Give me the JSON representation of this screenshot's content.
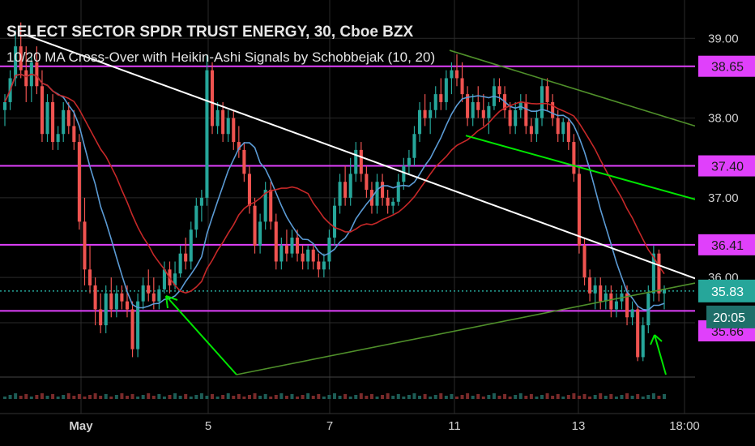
{
  "chart_data": {
    "type": "candlestick",
    "title": "SELECT SECTOR SPDR TRUST ENERGY, 30, Cboe BZX",
    "subtitle": "10/20 MA Cross-Over with Heikin-Ashi Signals by Schobbejak (10, 20)",
    "y_ticks": [
      "39.00",
      "38.00",
      "37.00",
      "36.00"
    ],
    "ylim": [
      34.75,
      39.4
    ],
    "x_ticks": [
      "May",
      "5",
      "7",
      "11",
      "13",
      "18:00"
    ],
    "horizontal_levels": [
      {
        "label": "38.65",
        "value": 38.65
      },
      {
        "label": "37.40",
        "value": 37.4
      },
      {
        "label": "36.41",
        "value": 36.41
      },
      {
        "label": "35.66",
        "value": 35.66
      }
    ],
    "last_price": {
      "label": "35.83",
      "value": 35.83
    },
    "countdown": "20:05",
    "colors": {
      "up": "#26a69a",
      "down": "#ef5350",
      "level": "#e040fb",
      "ma_fast": "#5b9bd5",
      "ma_slow": "#c62828",
      "trend": "#ffffff",
      "channel": "#00e600",
      "channel_dim": "#4f8f2a",
      "last": "#26a69a"
    },
    "candles": [
      [
        38.1,
        38.3,
        37.9,
        38.2
      ],
      [
        38.2,
        38.6,
        38.1,
        38.5
      ],
      [
        38.5,
        39.1,
        38.4,
        38.9
      ],
      [
        38.9,
        39.2,
        38.5,
        38.6
      ],
      [
        38.6,
        38.9,
        38.2,
        38.4
      ],
      [
        38.4,
        38.8,
        38.2,
        38.7
      ],
      [
        38.7,
        38.9,
        38.3,
        38.4
      ],
      [
        38.4,
        38.6,
        37.7,
        37.8
      ],
      [
        37.8,
        38.3,
        37.7,
        38.2
      ],
      [
        38.2,
        38.3,
        37.6,
        37.7
      ],
      [
        37.7,
        37.9,
        37.6,
        37.8
      ],
      [
        37.8,
        38.2,
        37.7,
        38.1
      ],
      [
        38.1,
        38.2,
        37.8,
        37.9
      ],
      [
        37.9,
        38.1,
        37.6,
        37.7
      ],
      [
        37.7,
        37.8,
        36.6,
        36.7
      ],
      [
        36.7,
        37.0,
        35.9,
        36.1
      ],
      [
        36.1,
        36.4,
        35.8,
        35.9
      ],
      [
        35.9,
        36.0,
        35.4,
        35.6
      ],
      [
        35.6,
        35.8,
        35.3,
        35.4
      ],
      [
        35.4,
        35.9,
        35.3,
        35.8
      ],
      [
        35.8,
        36.0,
        35.5,
        35.6
      ],
      [
        35.6,
        35.9,
        35.5,
        35.8
      ],
      [
        35.8,
        35.9,
        35.6,
        35.7
      ],
      [
        35.7,
        35.9,
        35.5,
        35.6
      ],
      [
        35.6,
        35.7,
        35.0,
        35.1
      ],
      [
        35.1,
        35.8,
        35.0,
        35.7
      ],
      [
        35.7,
        36.0,
        35.6,
        35.9
      ],
      [
        35.9,
        36.1,
        35.7,
        35.8
      ],
      [
        35.8,
        36.0,
        35.6,
        35.7
      ],
      [
        35.7,
        35.9,
        35.6,
        35.85
      ],
      [
        35.85,
        36.2,
        35.8,
        36.1
      ],
      [
        36.1,
        36.2,
        35.8,
        35.9
      ],
      [
        35.9,
        36.2,
        35.85,
        36.05
      ],
      [
        36.05,
        36.4,
        36.0,
        36.3
      ],
      [
        36.3,
        36.5,
        36.1,
        36.2
      ],
      [
        36.2,
        36.7,
        36.1,
        36.6
      ],
      [
        36.6,
        37.0,
        36.5,
        36.9
      ],
      [
        36.9,
        37.1,
        36.7,
        37.0
      ],
      [
        37.0,
        38.8,
        36.9,
        38.6
      ],
      [
        38.6,
        38.7,
        37.8,
        37.9
      ],
      [
        37.9,
        38.2,
        37.8,
        38.1
      ],
      [
        38.1,
        38.2,
        37.7,
        37.8
      ],
      [
        37.8,
        38.1,
        37.7,
        38.0
      ],
      [
        38.0,
        38.1,
        37.6,
        37.7
      ],
      [
        37.7,
        37.9,
        37.5,
        37.6
      ],
      [
        37.6,
        37.7,
        37.2,
        37.3
      ],
      [
        37.3,
        37.4,
        36.8,
        36.9
      ],
      [
        36.9,
        37.0,
        36.3,
        36.4
      ],
      [
        36.4,
        36.8,
        36.3,
        36.7
      ],
      [
        36.7,
        37.2,
        36.6,
        37.1
      ],
      [
        37.1,
        37.2,
        36.6,
        36.7
      ],
      [
        36.7,
        36.8,
        36.1,
        36.2
      ],
      [
        36.2,
        36.5,
        36.1,
        36.4
      ],
      [
        36.4,
        36.6,
        36.2,
        36.3
      ],
      [
        36.3,
        36.6,
        36.25,
        36.5
      ],
      [
        36.5,
        36.6,
        36.2,
        36.3
      ],
      [
        36.3,
        36.4,
        36.1,
        36.2
      ],
      [
        36.2,
        36.4,
        36.1,
        36.35
      ],
      [
        36.35,
        36.4,
        36.1,
        36.2
      ],
      [
        36.2,
        36.3,
        36.0,
        36.1
      ],
      [
        36.1,
        36.3,
        36.0,
        36.2
      ],
      [
        36.2,
        36.6,
        36.1,
        36.5
      ],
      [
        36.5,
        37.0,
        36.4,
        36.9
      ],
      [
        36.9,
        37.3,
        36.8,
        37.2
      ],
      [
        37.2,
        37.4,
        36.9,
        37.0
      ],
      [
        37.0,
        37.5,
        36.9,
        37.3
      ],
      [
        37.3,
        37.7,
        37.2,
        37.6
      ],
      [
        37.6,
        37.7,
        37.2,
        37.3
      ],
      [
        37.3,
        37.4,
        37.0,
        37.1
      ],
      [
        37.1,
        37.2,
        36.8,
        36.9
      ],
      [
        36.9,
        37.3,
        36.8,
        37.2
      ],
      [
        37.2,
        37.3,
        36.9,
        37.0
      ],
      [
        37.0,
        37.1,
        36.8,
        36.9
      ],
      [
        36.9,
        37.0,
        36.8,
        36.95
      ],
      [
        36.95,
        37.3,
        36.9,
        37.2
      ],
      [
        37.2,
        37.5,
        37.1,
        37.4
      ],
      [
        37.4,
        37.6,
        37.3,
        37.5
      ],
      [
        37.5,
        37.9,
        37.4,
        37.8
      ],
      [
        37.8,
        38.2,
        37.7,
        38.1
      ],
      [
        38.1,
        38.3,
        37.9,
        38.0
      ],
      [
        38.0,
        38.2,
        37.8,
        38.1
      ],
      [
        38.1,
        38.4,
        38.0,
        38.3
      ],
      [
        38.3,
        38.5,
        38.1,
        38.2
      ],
      [
        38.2,
        38.6,
        38.1,
        38.5
      ],
      [
        38.5,
        38.7,
        38.3,
        38.6
      ],
      [
        38.6,
        38.8,
        38.4,
        38.5
      ],
      [
        38.5,
        38.7,
        38.2,
        38.3
      ],
      [
        38.3,
        38.4,
        37.9,
        38.0
      ],
      [
        38.0,
        38.3,
        37.9,
        38.2
      ],
      [
        38.2,
        38.4,
        38.0,
        38.1
      ],
      [
        38.1,
        38.3,
        37.9,
        38.0
      ],
      [
        38.0,
        38.2,
        37.8,
        38.15
      ],
      [
        38.15,
        38.5,
        38.1,
        38.4
      ],
      [
        38.4,
        38.5,
        38.2,
        38.3
      ],
      [
        38.3,
        38.4,
        38.0,
        38.1
      ],
      [
        38.1,
        38.2,
        37.8,
        37.9
      ],
      [
        37.9,
        38.2,
        37.8,
        38.1
      ],
      [
        38.1,
        38.3,
        38.0,
        38.2
      ],
      [
        38.2,
        38.3,
        37.8,
        37.9
      ],
      [
        37.9,
        38.0,
        37.7,
        37.8
      ],
      [
        37.8,
        38.1,
        37.7,
        38.0
      ],
      [
        38.0,
        38.5,
        37.9,
        38.4
      ],
      [
        38.4,
        38.5,
        38.1,
        38.2
      ],
      [
        38.2,
        38.3,
        37.9,
        38.0
      ],
      [
        38.0,
        38.1,
        37.7,
        37.8
      ],
      [
        37.8,
        38.0,
        37.7,
        37.95
      ],
      [
        37.95,
        38.0,
        37.6,
        37.7
      ],
      [
        37.7,
        37.8,
        37.2,
        37.3
      ],
      [
        37.3,
        37.4,
        36.3,
        36.4
      ],
      [
        36.4,
        36.5,
        35.9,
        36.0
      ],
      [
        36.0,
        36.1,
        35.7,
        35.8
      ],
      [
        35.8,
        36.0,
        35.6,
        35.9
      ],
      [
        35.9,
        36.0,
        35.6,
        35.7
      ],
      [
        35.7,
        35.9,
        35.6,
        35.8
      ],
      [
        35.8,
        35.9,
        35.5,
        35.6
      ],
      [
        35.6,
        35.8,
        35.5,
        35.7
      ],
      [
        35.7,
        35.9,
        35.6,
        35.8
      ],
      [
        35.8,
        35.9,
        35.4,
        35.5
      ],
      [
        35.5,
        35.7,
        35.4,
        35.6
      ],
      [
        35.6,
        35.65,
        34.95,
        35.0
      ],
      [
        35.0,
        35.5,
        34.95,
        35.4
      ],
      [
        35.4,
        35.9,
        35.3,
        35.8
      ],
      [
        35.8,
        36.4,
        35.7,
        36.3
      ],
      [
        36.3,
        36.35,
        35.7,
        35.8
      ],
      [
        35.8,
        35.9,
        35.6,
        35.85
      ]
    ]
  }
}
